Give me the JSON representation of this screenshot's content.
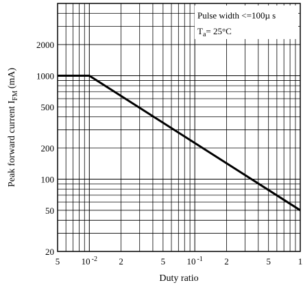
{
  "chart_data": {
    "type": "line",
    "xlabel": "Duty ratio",
    "ylabel": "Peak forward current I",
    "ylabel_sub": "FM",
    "ylabel_unit": "(mA)",
    "x_scale": "log",
    "y_scale": "log",
    "xlim": [
      0.005,
      1
    ],
    "ylim": [
      20,
      5000
    ],
    "grid": true,
    "x_ticks": [
      {
        "value": 0.005,
        "label": "5"
      },
      {
        "value": 0.01,
        "label": "10",
        "exp": "-2"
      },
      {
        "value": 0.02,
        "label": "2"
      },
      {
        "value": 0.05,
        "label": "5"
      },
      {
        "value": 0.1,
        "label": "10",
        "exp": "-1"
      },
      {
        "value": 0.2,
        "label": "2"
      },
      {
        "value": 0.5,
        "label": "5"
      },
      {
        "value": 1,
        "label": "1"
      }
    ],
    "y_ticks": [
      {
        "value": 20,
        "label": "20"
      },
      {
        "value": 50,
        "label": "50"
      },
      {
        "value": 100,
        "label": "100"
      },
      {
        "value": 200,
        "label": "200"
      },
      {
        "value": 500,
        "label": "500"
      },
      {
        "value": 1000,
        "label": "1000"
      },
      {
        "value": 2000,
        "label": "2000"
      }
    ],
    "series": [
      {
        "x": [
          0.005,
          0.01,
          1
        ],
        "y": [
          1000,
          1000,
          50
        ]
      }
    ],
    "annotation": {
      "line1": "Pulse width <=100µ s",
      "line2_main": "T",
      "line2_sub": "a",
      "line2_rest": "=  25°C"
    }
  }
}
